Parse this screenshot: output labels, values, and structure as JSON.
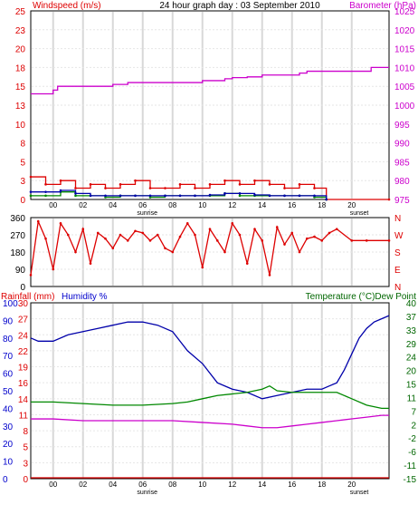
{
  "header": {
    "left": "Windspeed (m/s)",
    "center": "24 hour graph day : 03 September 2010",
    "right": "Barometer (hPa)"
  },
  "time_ticks": [
    "00",
    "02",
    "04",
    "06",
    "08",
    "10",
    "12",
    "14",
    "16",
    "18",
    "20"
  ],
  "sun_labels": {
    "sunrise": "sunrise",
    "sunset": "sunset"
  },
  "colors": {
    "wind": "#dd0000",
    "gust": "#008800",
    "avg": "#0000aa",
    "baro": "#cc00cc",
    "dir": "#dd0000",
    "temp": "#0000aa",
    "dew": "#008800",
    "hum": "#cc00cc",
    "rain": "#dd0000",
    "rain_axis": "#dd0000",
    "hum_axis": "#0000cc",
    "temp_axis": "#006600",
    "grid": "#d8d8d8"
  },
  "chart_data": [
    {
      "type": "line",
      "panel": "wind-barometer",
      "title": "24 hour graph day : 03 September 2010",
      "x_unit": "hour of day",
      "xlim": [
        -1.5,
        22.5
      ],
      "axes": {
        "left": {
          "label": "Windspeed (m/s)",
          "ticks": [
            "0",
            "3",
            "5",
            "8",
            "10",
            "13",
            "15",
            "18",
            "20",
            "23",
            "25"
          ],
          "ylim": [
            0,
            25
          ]
        },
        "right": {
          "label": "Barometer (hPa)",
          "ticks": [
            "975",
            "980",
            "985",
            "990",
            "995",
            "1000",
            "1005",
            "1010",
            "1015",
            "1020",
            "1025"
          ],
          "ylim": [
            975,
            1025
          ]
        }
      },
      "series": [
        {
          "key": "wind",
          "axis": "left",
          "x": [
            -1.5,
            -0.5,
            0.5,
            1.5,
            2.5,
            3.5,
            4.5,
            5.5,
            6.5,
            7.5,
            8.5,
            9.5,
            10.5,
            11.5,
            12.5,
            13.5,
            14.5,
            15.5,
            16.5,
            17.5,
            18.3,
            22.5
          ],
          "y": [
            3,
            2,
            2.5,
            1.5,
            2,
            1.5,
            2,
            2.5,
            1.5,
            1.5,
            2,
            1.5,
            2,
            2.5,
            2,
            2.5,
            2,
            1.5,
            2,
            1.5,
            0,
            0
          ]
        },
        {
          "key": "gust",
          "axis": "left",
          "x": [
            -1.5,
            -0.5,
            0.5,
            1.5,
            2.5,
            3.5,
            4.5,
            5.5,
            6.5,
            7.5,
            8.5,
            9.5,
            10.5,
            11.5,
            12.5,
            13.5,
            14.5,
            15.5,
            16.5,
            17.5,
            18.3
          ],
          "y": [
            0.5,
            0.5,
            1,
            0.5,
            0.5,
            0.3,
            0.5,
            0.5,
            0.3,
            0.5,
            0.5,
            0.5,
            0.5,
            0.8,
            0.5,
            0.5,
            0.5,
            0.5,
            0.5,
            0.3,
            0
          ]
        },
        {
          "key": "avg",
          "axis": "left",
          "x": [
            -1.5,
            -0.5,
            0.5,
            1.5,
            2.5,
            3.5,
            4.5,
            5.5,
            6.5,
            7.5,
            8.5,
            9.5,
            10.5,
            11.5,
            12.5,
            13.5,
            14.5,
            15.5,
            16.5,
            17.5,
            18.3
          ],
          "y": [
            1,
            1,
            1.2,
            0.8,
            0.5,
            0.5,
            0.5,
            0.5,
            0.5,
            0.5,
            0.5,
            0.5,
            0.6,
            0.8,
            0.8,
            0.6,
            0.5,
            0.5,
            0.5,
            0.5,
            0
          ]
        },
        {
          "key": "baro",
          "axis": "right",
          "x": [
            -1.5,
            -0.3,
            0,
            0.3,
            2,
            3,
            4,
            5,
            6,
            7,
            8,
            9,
            10,
            11,
            11.5,
            12,
            13,
            14,
            15,
            16,
            16.5,
            17,
            18,
            19,
            20,
            21,
            21.3,
            22.5
          ],
          "y": [
            1003,
            1003,
            1004,
            1005,
            1005,
            1005,
            1005.5,
            1006,
            1006,
            1006,
            1006,
            1006,
            1006.5,
            1006.5,
            1007,
            1007.3,
            1007.5,
            1008,
            1008,
            1008,
            1008.5,
            1009,
            1009,
            1009,
            1009,
            1009,
            1010,
            1010
          ]
        }
      ]
    },
    {
      "type": "scatter",
      "panel": "wind-direction",
      "xlim": [
        -1.5,
        22.5
      ],
      "axes": {
        "left": {
          "ticks": [
            "0",
            "90",
            "180",
            "270",
            "360"
          ],
          "ylim": [
            0,
            360
          ]
        },
        "right": {
          "ticks": [
            "N",
            "E",
            "S",
            "W",
            "N"
          ]
        }
      },
      "series": [
        {
          "key": "dir",
          "x": [
            -1.5,
            -1,
            -0.5,
            0,
            0.5,
            1,
            1.5,
            2,
            2.5,
            3,
            3.5,
            4,
            4.5,
            5,
            5.5,
            6,
            6.5,
            7,
            7.5,
            8,
            8.5,
            9,
            9.5,
            10,
            10.5,
            11,
            11.5,
            12,
            12.5,
            13,
            13.5,
            14,
            14.5,
            15,
            15.5,
            16,
            16.5,
            17,
            17.5,
            18,
            18.5,
            19,
            20,
            21,
            22.5
          ],
          "y": [
            60,
            340,
            250,
            90,
            330,
            270,
            180,
            300,
            120,
            280,
            250,
            200,
            270,
            240,
            290,
            280,
            240,
            270,
            200,
            180,
            260,
            330,
            270,
            100,
            300,
            240,
            180,
            330,
            270,
            120,
            300,
            240,
            60,
            310,
            220,
            280,
            180,
            250,
            260,
            240,
            280,
            300,
            240,
            240,
            240
          ]
        }
      ]
    },
    {
      "type": "line",
      "panel": "rain-humidity-temperature",
      "xlim": [
        -1.5,
        22.5
      ],
      "axes": {
        "left_outer": {
          "label": "Rainfall (mm)",
          "ticks": [
            "0",
            "10",
            "20",
            "30",
            "40",
            "50",
            "60",
            "70",
            "80",
            "90",
            "100"
          ],
          "ylim": [
            0,
            100
          ]
        },
        "left_inner": {
          "label": "Humidity %",
          "ticks": [
            "0",
            "3",
            "5",
            "8",
            "11",
            "14",
            "16",
            "19",
            "22",
            "24",
            "27",
            "30"
          ],
          "ylim": [
            0,
            30
          ]
        },
        "right": {
          "label": "Temperature (°C)Dew Point",
          "ticks": [
            "-15",
            "-11",
            "-6",
            "-2",
            "2",
            "7",
            "11",
            "15",
            "20",
            "24",
            "29",
            "33",
            "37",
            "40"
          ],
          "ylim": [
            -15,
            40
          ]
        }
      },
      "series": [
        {
          "key": "temp",
          "axis": "right",
          "x": [
            -1.5,
            -1,
            0,
            1,
            2,
            3,
            4,
            5,
            6,
            7,
            8,
            9,
            10,
            11,
            12,
            13,
            14,
            15,
            16,
            17,
            18,
            18.5,
            19,
            19.5,
            20,
            20.5,
            21,
            21.5,
            22,
            22.5
          ],
          "y": [
            29,
            28,
            28,
            30,
            31,
            32,
            33,
            34,
            34,
            33,
            31,
            25,
            21,
            15,
            13,
            12,
            10,
            11,
            12,
            13,
            13,
            14,
            15,
            19,
            24,
            29,
            32,
            34,
            35,
            36
          ]
        },
        {
          "key": "dew",
          "axis": "right",
          "x": [
            -1.5,
            0,
            2,
            4,
            6,
            8,
            9,
            10,
            11,
            12,
            13,
            14,
            14.5,
            15,
            16,
            17,
            18,
            19,
            20,
            21,
            22,
            22.5
          ],
          "y": [
            9,
            9,
            8.5,
            8,
            8,
            8.5,
            9,
            10,
            11,
            11.5,
            12,
            13,
            14,
            12.5,
            12,
            12,
            12,
            12,
            10,
            8,
            7,
            7
          ]
        },
        {
          "key": "hum",
          "axis": "left_outer",
          "x": [
            -1.5,
            0,
            2,
            4,
            6,
            8,
            10,
            12,
            13,
            14,
            15,
            16,
            17,
            18,
            19,
            20,
            21,
            22,
            22.5
          ],
          "y": [
            34,
            34,
            33,
            33,
            33,
            33,
            32,
            31,
            30,
            29,
            29,
            30,
            31,
            32,
            33,
            34,
            35,
            36,
            36
          ]
        },
        {
          "key": "rain",
          "axis": "left_outer",
          "x": [
            -1.5,
            22.5
          ],
          "y": [
            0.5,
            0.5
          ]
        }
      ]
    }
  ]
}
